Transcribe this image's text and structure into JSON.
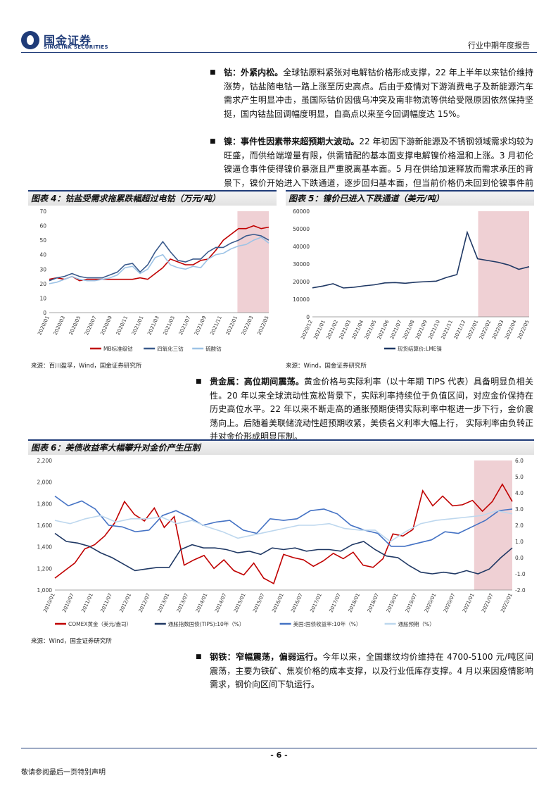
{
  "header": {
    "logo_cn": "国金证券",
    "logo_en": "SINOLINK SECURITIES",
    "report_type": "行业中期年度报告"
  },
  "paragraphs": {
    "cobalt": {
      "lead": "钴：外紧内松。",
      "body": "全球钴原料紧张对电解钴价格形成支撑，22 年上半年以来钴价维持涨势，钴盐随电钴一路上涨至历史高点。后由于疫情对下游消费电子及新能源汽车需求产生明显冲击，虽国际钴价因俄乌冲突及南非物流等供给受限原因依然保持坚挺，国内钴盐回调幅度明显，自高点以来至今回调幅度达 15%。"
    },
    "nickel": {
      "lead": "镍：事件性因素带来超预期大波动。",
      "body": "22 年初因下游新能源及不锈钢领域需求均较为旺盛，而供给端增量有限，供需错配的基本面支撑电解镍价格温和上涨。3 月初伦镍逼仓事件使得镍价暴涨且严重脱离基本面。5 月在供给加速释放而需求承压的背景下，镍价开始进入下跌通道，逐步回归基本面，但当前价格仍未回到伦镍事件前水平。"
    },
    "gold": {
      "lead": "贵金属：高位期间震荡。",
      "body": "黄金价格与实际利率（以十年期 TIPS 代表）具备明显负相关性。20 年以来全球流动性宽松背景下，实际利率持续位于负值区间，对应金价保持在历史高位水平。22 年以来不断走高的通胀预期使得实际利率中枢进一步下行，金价震荡向上。后随着美联储流动性超预期收紧，美债名义利率大幅上行， 实际利率由负转正并对金价形成明显压制。"
    },
    "steel": {
      "lead": "钢铁：窄幅震荡，偏弱运行。",
      "body": "今年以来，全国螺纹均价维持在 4700-5100 元/吨区间震荡，主要为铁矿、焦炭价格的成本支撑，以及行业低库存支撑。4 月以来因疫情影响需求，钢价向区间下轨运行。"
    }
  },
  "figures": {
    "fig4": {
      "title": "图表 4：钴盐受需求拖累跌幅超过电钴（万元/吨）",
      "source": "来源：百川盈孚，Wind，国金证券研究所"
    },
    "fig5": {
      "title": "图表 5：镍价已进入下跌通道（美元/吨）",
      "source": "来源：Wind，国金证券研究所"
    },
    "fig6": {
      "title": "图表 6：美债收益率大幅攀升对金价产生压制",
      "source": "来源：Wind，国金证券研究所"
    }
  },
  "chart_data": [
    {
      "type": "line",
      "x_ticks": [
        "2020/01",
        "2020/03",
        "2020/05",
        "2020/07",
        "2020/09",
        "2020/11",
        "2021/01",
        "2021/03",
        "2021/05",
        "2021/07",
        "2021/09",
        "2021/11",
        "2022/01",
        "2022/03",
        "2022/05"
      ],
      "ylim": [
        0,
        70
      ],
      "y_ticks": [
        0,
        10,
        20,
        30,
        40,
        50,
        60,
        70
      ],
      "shaded_from": "2022/01",
      "series": [
        {
          "name": "MB标准级钴",
          "color": "#c00000",
          "values": [
            23,
            24,
            23,
            25,
            22,
            23,
            23,
            23,
            23,
            23,
            23,
            23,
            24,
            23,
            27,
            31,
            37,
            35,
            33,
            33,
            36,
            37,
            43,
            50,
            54,
            58,
            58,
            60,
            58,
            59
          ]
        },
        {
          "name": "四氧化三钴",
          "color": "#3a5a8c",
          "values": [
            22,
            24,
            25,
            27,
            25,
            24,
            24,
            24,
            26,
            28,
            33,
            34,
            28,
            33,
            42,
            49,
            42,
            36,
            35,
            37,
            37,
            42,
            45,
            45,
            48,
            50,
            53,
            54,
            53,
            50
          ]
        },
        {
          "name": "硫酸钴",
          "color": "#9dc3e6",
          "values": [
            20,
            21,
            23,
            25,
            23,
            22,
            22,
            23,
            24,
            26,
            31,
            32,
            27,
            30,
            38,
            40,
            33,
            31,
            30,
            32,
            31,
            37,
            40,
            41,
            44,
            46,
            47,
            50,
            52,
            48
          ]
        }
      ]
    },
    {
      "type": "line",
      "x_ticks": [
        "2020/12",
        "2021/01",
        "2021/02",
        "2021/03",
        "2021/04",
        "2021/05",
        "2021/06",
        "2021/07",
        "2021/08",
        "2021/09",
        "2021/10",
        "2021/11",
        "2021/12",
        "2022/01",
        "2022/02",
        "2022/03",
        "2022/04",
        "2022/05"
      ],
      "ylim": [
        0,
        60000
      ],
      "y_ticks": [
        0,
        10000,
        20000,
        30000,
        40000,
        50000,
        60000
      ],
      "shaded_from": "2022/01",
      "series": [
        {
          "name": "现货结算价:LME镍",
          "color": "#1f3864",
          "values": [
            16500,
            17500,
            18800,
            16400,
            16800,
            17600,
            18200,
            19300,
            19500,
            19100,
            19700,
            20000,
            20300,
            22400,
            24000,
            48000,
            33000,
            32000,
            31000,
            29500,
            27000,
            28500
          ]
        }
      ]
    },
    {
      "type": "line",
      "x_ticks": [
        "2010/01",
        "2010/07",
        "2011/01",
        "2011/07",
        "2012/01",
        "2012/07",
        "2013/01",
        "2013/07",
        "2014/01",
        "2014/07",
        "2015/01",
        "2015/07",
        "2016/01",
        "2016/07",
        "2017/01",
        "2017/07",
        "2018/01",
        "2018/07",
        "2019/01",
        "2019/07",
        "2020/01",
        "2020/07",
        "2021/01",
        "2021/07",
        "2022/01"
      ],
      "left_axis": {
        "ylim": [
          1000,
          2200
        ],
        "ticks": [
          "1,000",
          "1,200",
          "1,400",
          "1,600",
          "1,800",
          "2,000",
          "2,200"
        ]
      },
      "right_axis": {
        "ylim": [
          -2.0,
          6.0
        ],
        "ticks": [
          "-2.0",
          "-1.0",
          "0.0",
          "1.0",
          "2.0",
          "3.0",
          "4.0",
          "5.0",
          "6.0"
        ]
      },
      "shaded_from": "2021/01",
      "series": [
        {
          "name": "COMEX黄金（美元/盎司）",
          "axis": "left",
          "color": "#c00000",
          "values": [
            1110,
            1180,
            1250,
            1380,
            1420,
            1500,
            1620,
            1820,
            1700,
            1640,
            1760,
            1580,
            1680,
            1230,
            1280,
            1320,
            1200,
            1280,
            1180,
            1140,
            1250,
            1110,
            1060,
            1330,
            1300,
            1280,
            1220,
            1270,
            1340,
            1290,
            1350,
            1230,
            1210,
            1290,
            1520,
            1500,
            1560,
            1920,
            1780,
            1870,
            1780,
            1790,
            1830,
            1730,
            1820,
            1980,
            1820
          ]
        },
        {
          "name": "通胀指数国债(TIPS):10年（%）",
          "axis": "right",
          "color": "#1f3864",
          "values": [
            1.5,
            1.0,
            0.9,
            0.7,
            0.3,
            0.0,
            -0.4,
            -0.8,
            -0.7,
            -0.6,
            -0.6,
            0.5,
            0.8,
            0.6,
            0.6,
            0.5,
            0.3,
            0.4,
            0.2,
            0.6,
            0.5,
            0.6,
            0.4,
            0.5,
            0.5,
            0.4,
            0.8,
            1.0,
            0.5,
            0.1,
            0.0,
            -0.5,
            -0.9,
            -1.0,
            -0.9,
            -1.0,
            -0.8,
            -1.0,
            -0.7,
            0.0,
            0.6
          ]
        },
        {
          "name": "美国:国债收益率:10年（%）",
          "axis": "right",
          "color": "#4472c4",
          "values": [
            3.8,
            3.2,
            3.5,
            3.0,
            2.0,
            1.9,
            1.6,
            1.7,
            2.6,
            2.9,
            2.5,
            2.0,
            2.2,
            2.3,
            1.7,
            1.5,
            2.4,
            2.3,
            2.4,
            2.9,
            3.0,
            2.7,
            2.0,
            1.7,
            1.5,
            0.7,
            0.7,
            0.9,
            1.1,
            1.6,
            1.5,
            1.9,
            2.3,
            2.9,
            3.0
          ]
        },
        {
          "name": "通胀预期（%）",
          "axis": "right",
          "color": "#bdd7ee",
          "values": [
            2.3,
            2.1,
            2.4,
            2.6,
            2.2,
            2.4,
            2.4,
            2.5,
            2.1,
            2.3,
            1.9,
            1.6,
            1.2,
            1.4,
            1.6,
            1.8,
            2.0,
            2.0,
            2.1,
            1.8,
            1.7,
            1.7,
            1.0,
            1.6,
            2.1,
            2.3,
            2.4,
            2.5,
            2.6,
            2.9,
            2.7
          ]
        }
      ]
    }
  ],
  "footer": {
    "page_num": "- 6 -",
    "disclaimer": "敬请参阅最后一页特别声明"
  }
}
